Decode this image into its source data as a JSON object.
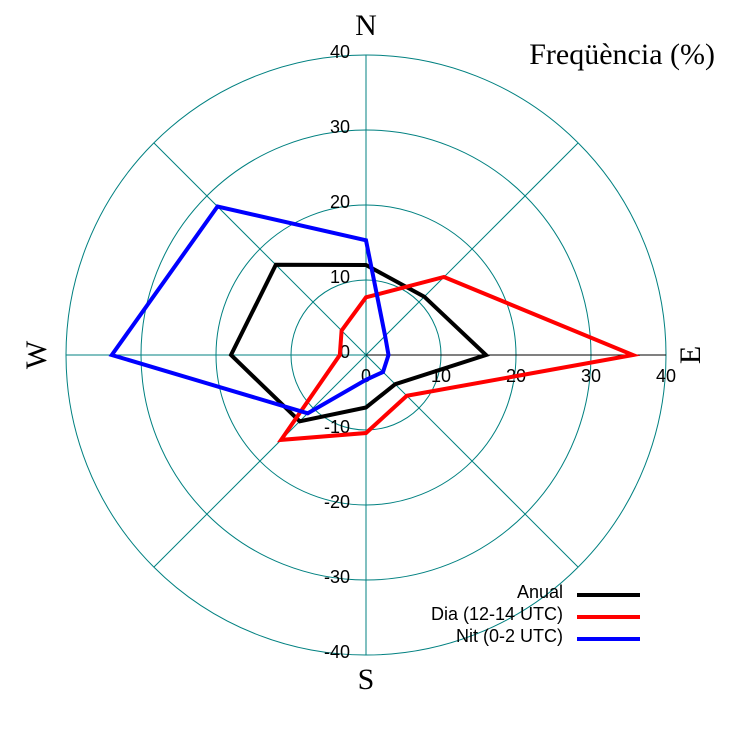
{
  "chart_data": {
    "type": "radar",
    "title": "Freqüència (%)",
    "categories": [
      "N",
      null,
      "E",
      null,
      "S",
      null,
      "W",
      null
    ],
    "rlim": [
      0,
      40
    ],
    "rticks": [
      10,
      20,
      30,
      40
    ],
    "xticks": [
      0,
      10,
      20,
      30,
      40
    ],
    "yticks": [
      -40,
      -30,
      -20,
      -10,
      0,
      10,
      20,
      30,
      40
    ],
    "grid": true,
    "grid_color": "#008080",
    "legend": "lower right",
    "series": [
      {
        "name": "Anual",
        "color": "#000000",
        "values": [
          12,
          11,
          16,
          5.5,
          7,
          12.5,
          18,
          17
        ]
      },
      {
        "name": "Dia (12-14 UTC)",
        "color": "#ff0000",
        "values": [
          7.7,
          14.7,
          35.6,
          7.7,
          10.4,
          16,
          3.5,
          4.6
        ]
      },
      {
        "name": "Nit (0-2 UTC)",
        "color": "#0000ff",
        "values": [
          15.3,
          3.6,
          3,
          3.2,
          3.3,
          11,
          33.9,
          28
        ]
      }
    ]
  }
}
